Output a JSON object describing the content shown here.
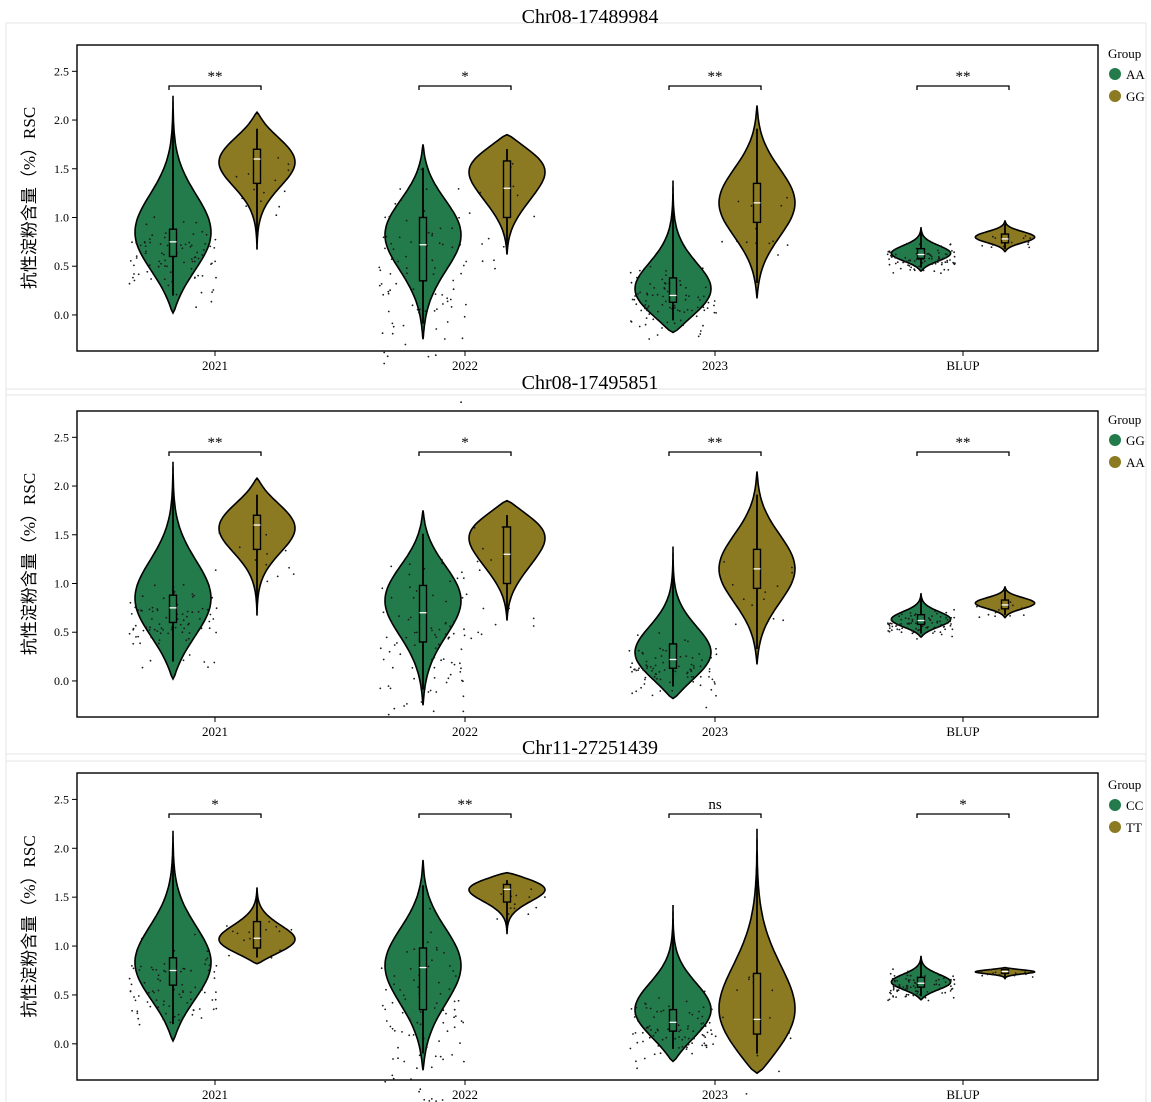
{
  "chart_data": [
    {
      "type": "violin",
      "title": "Chr08-17489984",
      "ylabel": "抗性淀粉含量（%）RSC",
      "xlabel": "",
      "categories": [
        "2021",
        "2022",
        "2023",
        "BLUP"
      ],
      "yticks": [
        "0.0",
        "0.5",
        "1.0",
        "1.5",
        "2.0",
        "2.5"
      ],
      "ylim": [
        -0.37,
        2.77
      ],
      "legend_title": "Group",
      "legend_position": "right",
      "colors": {
        "AA": "#237a4b",
        "GG": "#8b7a22"
      },
      "series": [
        {
          "name": "AA",
          "violins": [
            {
              "category": "2021",
              "min": 0.02,
              "max": 2.25,
              "q1": 0.6,
              "median": 0.75,
              "q3": 0.88,
              "mode": 0.8
            },
            {
              "category": "2022",
              "min": -0.25,
              "max": 1.75,
              "q1": 0.35,
              "median": 0.72,
              "q3": 1.0,
              "mode": 0.9
            },
            {
              "category": "2023",
              "min": -0.18,
              "max": 1.38,
              "q1": 0.13,
              "median": 0.2,
              "q3": 0.38,
              "mode": 0.15
            },
            {
              "category": "BLUP",
              "min": 0.45,
              "max": 0.9,
              "q1": 0.58,
              "median": 0.62,
              "q3": 0.68,
              "mode": 0.62
            }
          ]
        },
        {
          "name": "GG",
          "violins": [
            {
              "category": "2021",
              "min": 0.67,
              "max": 2.08,
              "q1": 1.35,
              "median": 1.6,
              "q3": 1.7,
              "mode": 1.65
            },
            {
              "category": "2022",
              "min": 0.62,
              "max": 1.85,
              "q1": 1.0,
              "median": 1.3,
              "q3": 1.58,
              "mode": 1.62
            },
            {
              "category": "2023",
              "min": 0.17,
              "max": 2.15,
              "q1": 0.95,
              "median": 1.15,
              "q3": 1.35,
              "mode": 1.15
            },
            {
              "category": "BLUP",
              "min": 0.65,
              "max": 0.97,
              "q1": 0.74,
              "median": 0.78,
              "q3": 0.83,
              "mode": 0.8
            }
          ]
        }
      ],
      "significance": [
        "**",
        "*",
        "**",
        "**"
      ]
    },
    {
      "type": "violin",
      "title": "Chr08-17495851",
      "ylabel": "抗性淀粉含量（%）RSC",
      "xlabel": "",
      "categories": [
        "2021",
        "2022",
        "2023",
        "BLUP"
      ],
      "yticks": [
        "0.0",
        "0.5",
        "1.0",
        "1.5",
        "2.0",
        "2.5"
      ],
      "ylim": [
        -0.37,
        2.77
      ],
      "legend_title": "Group",
      "legend_position": "right",
      "colors": {
        "GG": "#237a4b",
        "AA": "#8b7a22"
      },
      "series": [
        {
          "name": "GG",
          "violins": [
            {
              "category": "2021",
              "min": 0.02,
              "max": 2.25,
              "q1": 0.6,
              "median": 0.75,
              "q3": 0.88,
              "mode": 0.8
            },
            {
              "category": "2022",
              "min": -0.25,
              "max": 1.75,
              "q1": 0.4,
              "median": 0.7,
              "q3": 0.98,
              "mode": 0.9
            },
            {
              "category": "2023",
              "min": -0.18,
              "max": 1.38,
              "q1": 0.13,
              "median": 0.22,
              "q3": 0.38,
              "mode": 0.2
            },
            {
              "category": "BLUP",
              "min": 0.45,
              "max": 0.9,
              "q1": 0.58,
              "median": 0.62,
              "q3": 0.68,
              "mode": 0.62
            }
          ]
        },
        {
          "name": "AA",
          "violins": [
            {
              "category": "2021",
              "min": 0.67,
              "max": 2.08,
              "q1": 1.35,
              "median": 1.6,
              "q3": 1.7,
              "mode": 1.65
            },
            {
              "category": "2022",
              "min": 0.62,
              "max": 1.85,
              "q1": 1.0,
              "median": 1.3,
              "q3": 1.58,
              "mode": 1.62
            },
            {
              "category": "2023",
              "min": 0.17,
              "max": 2.15,
              "q1": 0.95,
              "median": 1.15,
              "q3": 1.35,
              "mode": 1.15
            },
            {
              "category": "BLUP",
              "min": 0.65,
              "max": 0.97,
              "q1": 0.74,
              "median": 0.78,
              "q3": 0.83,
              "mode": 0.8
            }
          ]
        }
      ],
      "significance": [
        "**",
        "*",
        "**",
        "**"
      ]
    },
    {
      "type": "violin",
      "title": "Chr11-27251439",
      "ylabel": "抗性淀粉含量（%）RSC",
      "xlabel": "",
      "categories": [
        "2021",
        "2022",
        "2023",
        "BLUP"
      ],
      "yticks": [
        "0.0",
        "0.5",
        "1.0",
        "1.5",
        "2.0",
        "2.5"
      ],
      "ylim": [
        -0.37,
        2.77
      ],
      "legend_title": "Group",
      "legend_position": "right",
      "colors": {
        "CC": "#237a4b",
        "TT": "#8b7a22"
      },
      "series": [
        {
          "name": "CC",
          "violins": [
            {
              "category": "2021",
              "min": 0.03,
              "max": 2.18,
              "q1": 0.6,
              "median": 0.75,
              "q3": 0.88,
              "mode": 0.78
            },
            {
              "category": "2022",
              "min": -0.27,
              "max": 1.88,
              "q1": 0.35,
              "median": 0.78,
              "q3": 0.98,
              "mode": 0.85
            },
            {
              "category": "2023",
              "min": -0.18,
              "max": 1.42,
              "q1": 0.13,
              "median": 0.22,
              "q3": 0.35,
              "mode": 0.3
            },
            {
              "category": "BLUP",
              "min": 0.45,
              "max": 0.9,
              "q1": 0.58,
              "median": 0.62,
              "q3": 0.68,
              "mode": 0.62
            }
          ]
        },
        {
          "name": "TT",
          "violins": [
            {
              "category": "2021",
              "min": 0.82,
              "max": 1.6,
              "q1": 0.98,
              "median": 1.08,
              "q3": 1.25,
              "mode": 1.0
            },
            {
              "category": "2022",
              "min": 1.12,
              "max": 1.75,
              "q1": 1.45,
              "median": 1.58,
              "q3": 1.63,
              "mode": 1.65
            },
            {
              "category": "2023",
              "min": -0.3,
              "max": 2.2,
              "q1": 0.1,
              "median": 0.25,
              "q3": 0.72,
              "mode": 0.1
            },
            {
              "category": "BLUP",
              "min": 0.66,
              "max": 0.78,
              "q1": 0.72,
              "median": 0.74,
              "q3": 0.76,
              "mode": 0.74
            }
          ]
        }
      ],
      "significance": [
        "*",
        "**",
        "ns",
        "*"
      ]
    }
  ]
}
